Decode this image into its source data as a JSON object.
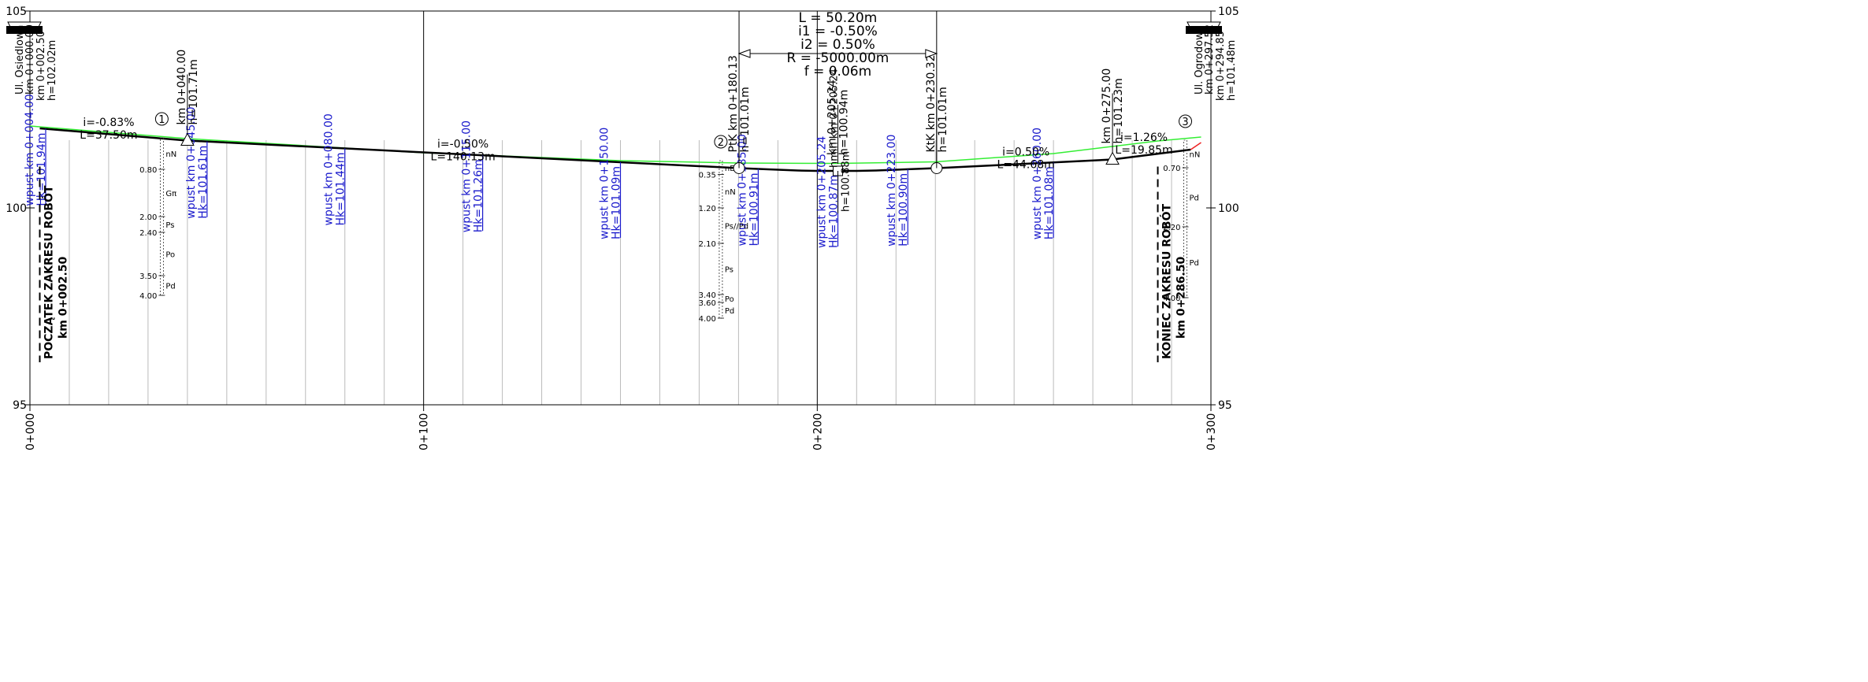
{
  "axis": {
    "x_ticks": [
      {
        "km": 0,
        "label": "0+000"
      },
      {
        "km": 100,
        "label": "0+100"
      },
      {
        "km": 200,
        "label": "0+200"
      },
      {
        "km": 300,
        "label": "0+300"
      }
    ],
    "y_ticks": [
      {
        "h": 105,
        "label": "105"
      },
      {
        "h": 100,
        "label": "100"
      },
      {
        "h": 95,
        "label": "95"
      }
    ],
    "minor_grid_km": [
      10,
      20,
      30,
      40,
      50,
      60,
      70,
      80,
      90,
      110,
      120,
      130,
      140,
      150,
      160,
      170,
      180,
      190,
      210,
      220,
      230,
      240,
      250,
      260,
      270,
      280,
      290
    ]
  },
  "chart_data": {
    "type": "line",
    "x_unit": "km (m)",
    "y_unit": "m",
    "xlim": [
      0,
      300
    ],
    "ylim": [
      95,
      105
    ],
    "terrain": [
      [
        0,
        102.08
      ],
      [
        40,
        101.76
      ],
      [
        100,
        101.4
      ],
      [
        150,
        101.2
      ],
      [
        180,
        101.14
      ],
      [
        205,
        101.13
      ],
      [
        230,
        101.17
      ],
      [
        260,
        101.38
      ],
      [
        286.5,
        101.7
      ],
      [
        297.5,
        101.8
      ]
    ],
    "design_profile": [
      [
        2.5,
        102.02
      ],
      [
        40,
        101.71
      ],
      [
        180.13,
        101.01
      ],
      [
        185,
        100.99
      ],
      [
        190,
        100.97
      ],
      [
        195,
        100.95
      ],
      [
        200,
        100.94
      ],
      [
        205.24,
        100.94
      ],
      [
        210,
        100.94
      ],
      [
        215,
        100.95
      ],
      [
        220,
        100.97
      ],
      [
        225,
        100.99
      ],
      [
        230.32,
        101.01
      ],
      [
        275,
        101.23
      ],
      [
        294.85,
        101.48
      ]
    ],
    "red_segment": [
      [
        294.85,
        101.48
      ],
      [
        297.5,
        101.66
      ]
    ]
  },
  "start_labels": {
    "street": "Ul. Osiedlowa",
    "km": "km 0+000.00",
    "km2": "km 0+002.50",
    "h": "h=102.02m"
  },
  "end_labels": {
    "street": "Ul. Ogrodowa",
    "km": "km 0+297.52",
    "km2": "km 0+294.85",
    "h": "h=101.48m"
  },
  "points": [
    {
      "km": 40,
      "h": 101.71,
      "marker": "triangle",
      "label": "km 0+040.00",
      "hlabel": "h=101.71m"
    },
    {
      "km": 180.13,
      "h": 101.01,
      "marker": "circle",
      "label": "PtK km 0+180.13",
      "hlabel": "h=101.01m"
    },
    {
      "km": 205.24,
      "h": 100.94,
      "marker": "square",
      "label": "km 0+205.24",
      "hlabel": "h=100.94m"
    },
    {
      "km": 230.32,
      "h": 101.01,
      "marker": "circle",
      "label": "KtK km 0+230.32",
      "hlabel": "h=101.01m"
    },
    {
      "km": 275,
      "h": 101.23,
      "marker": "triangle",
      "label": "km 0+275.00",
      "hlabel": "h=101.23m"
    }
  ],
  "hmin": {
    "label": "hmin km 0+205.24",
    "hlabel": "h=100.88m"
  },
  "curve": {
    "km_start": 180.13,
    "km_end": 230.32,
    "lines": [
      "L = 50.20m",
      "i1 = -0.50%",
      "i2 = 0.50%",
      "R = -5000.00m",
      "f = 0.06m"
    ]
  },
  "gradients": [
    {
      "km": 20,
      "h": 101.92,
      "i": "i=-0.83%",
      "L": "L=37.50m"
    },
    {
      "km": 110,
      "h": 101.37,
      "i": "i=-0.50%",
      "L": "L=140.13m"
    },
    {
      "km": 253,
      "h": 101.17,
      "i": "i=0.50%",
      "L": "L=44.68m"
    },
    {
      "km": 283,
      "h": 101.54,
      "i": "i=1.26%",
      "L": "L=19.85m"
    }
  ],
  "inlets": [
    {
      "km": 4,
      "label": "wpust km 0+004.00",
      "hk": "Hk=101.94m"
    },
    {
      "km": 45,
      "label": "wpust km 0+045.00",
      "hk": "Hk=101.61m"
    },
    {
      "km": 80,
      "label": "wpust km 0+080.00",
      "hk": "Hk=101.44m"
    },
    {
      "km": 115,
      "label": "wpust km 0+115.00",
      "hk": "Hk=101.26m"
    },
    {
      "km": 150,
      "label": "wpust km 0+150.00",
      "hk": "Hk=101.09m"
    },
    {
      "km": 185,
      "label": "wpust km 0+185.00",
      "hk": "Hk=100.91m"
    },
    {
      "km": 205.24,
      "label": "wpust km 0+205.24",
      "hk": "Hk=100.87m"
    },
    {
      "km": 223,
      "label": "wpust km 0+223.00",
      "hk": "Hk=100.90m"
    },
    {
      "km": 260,
      "label": "wpust km 0+260.00",
      "hk": "Hk=101.08m"
    }
  ],
  "boreholes": [
    {
      "id": "1",
      "km": 33.5,
      "top": 101.78,
      "layers": [
        {
          "code": "nN",
          "from": 0,
          "to": 0.8
        },
        {
          "code": "Gπ",
          "from": 0.8,
          "to": 2.0
        },
        {
          "code": "Ps",
          "from": 2.0,
          "to": 2.4
        },
        {
          "code": "Po",
          "from": 2.4,
          "to": 3.5
        },
        {
          "code": "Pd",
          "from": 3.5,
          "to": 4.0
        }
      ],
      "depths": [
        "0.80",
        "2.00",
        "2.40",
        "3.50",
        "4.00"
      ]
    },
    {
      "id": "2",
      "km": 175.5,
      "top": 101.2,
      "layers": [
        {
          "code": "nB",
          "from": 0,
          "to": 0.35
        },
        {
          "code": "nN",
          "from": 0.35,
          "to": 1.2
        },
        {
          "code": "Ps//Pd",
          "from": 1.2,
          "to": 2.1
        },
        {
          "code": "Ps",
          "from": 2.1,
          "to": 3.4
        },
        {
          "code": "Po",
          "from": 3.4,
          "to": 3.6
        },
        {
          "code": "Pd",
          "from": 3.6,
          "to": 4.0
        }
      ],
      "depths": [
        "0.35",
        "1.20",
        "2.10",
        "3.40",
        "3.60",
        "4.00"
      ]
    },
    {
      "id": "3",
      "km": 293.5,
      "top": 101.72,
      "layers": [
        {
          "code": "nN",
          "from": 0,
          "to": 0.7
        },
        {
          "code": "Pd",
          "from": 0.7,
          "to": 2.2
        },
        {
          "code": "Pd",
          "from": 2.2,
          "to": 4.0
        }
      ],
      "depths": [
        "0.70",
        "2.20",
        "4.00"
      ]
    }
  ],
  "works": [
    {
      "km": 2.5,
      "line1": "POCZĄTEK ZAKRESU ROBÓT",
      "line2": "km 0+002.50"
    },
    {
      "km": 286.5,
      "line1": "KONIEC ZAKRESU ROBÓT",
      "line2": "km 0+286.50"
    }
  ],
  "colors": {
    "grid": "#bbbbbb",
    "terrain": "#33ee33",
    "design": "#000000",
    "inlet": "#1a1acc",
    "accent_red": "#ee2222",
    "text": "#000000"
  }
}
